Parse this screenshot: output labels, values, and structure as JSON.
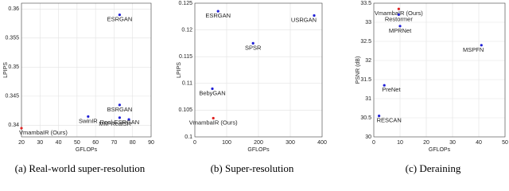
{
  "chart_data": [
    {
      "type": "scatter",
      "caption": "(a) Real-world super-resolution",
      "x_label": "GFLOPs",
      "y_label": "LPIPS",
      "x": [
        73,
        73,
        56,
        78,
        73,
        20
      ],
      "values": [
        0.359,
        0.3435,
        0.3415,
        0.341,
        0.3413,
        0.3395
      ],
      "point_labels": [
        "ESRGAN",
        "BSRGAN",
        "SwinIR",
        "MM-RealSR",
        "Real-ESRGAN",
        "VmambaIR (Ours)"
      ],
      "colors": [
        "#1f1fd6",
        "#1f1fd6",
        "#1f1fd6",
        "#1f1fd6",
        "#1f1fd6",
        "#e02020"
      ],
      "xlim": [
        20,
        90
      ],
      "xticks": [
        20,
        30,
        40,
        50,
        60,
        70,
        80,
        90
      ],
      "ylim": [
        0.338,
        0.361
      ],
      "yticks": [
        0.34,
        0.345,
        0.35,
        0.355,
        0.36
      ],
      "grid": true
    },
    {
      "type": "scatter",
      "caption": "(b) Super-resolution",
      "x_label": "GFLOPs",
      "y_label": "LPIPS",
      "x": [
        73,
        375,
        183,
        55,
        58
      ],
      "values": [
        0.1235,
        0.1227,
        0.1175,
        0.109,
        0.1035
      ],
      "point_labels": [
        "ESRGAN",
        "USRGAN",
        "SPSR",
        "BebyGAN",
        "VmambaIR (Ours)"
      ],
      "colors": [
        "#1f1fd6",
        "#1f1fd6",
        "#1f1fd6",
        "#1f1fd6",
        "#e02020"
      ],
      "xlim": [
        0,
        400
      ],
      "xticks": [
        0,
        100,
        200,
        300,
        400
      ],
      "ylim": [
        0.1,
        0.125
      ],
      "yticks": [
        0.1,
        0.105,
        0.11,
        0.115,
        0.12,
        0.125
      ],
      "grid": true
    },
    {
      "type": "scatter",
      "caption": "(c) Deraining",
      "x_label": "GFLOPs",
      "y_label": "PSNR (dB)",
      "x": [
        9.5,
        9.5,
        10,
        41,
        4,
        2
      ],
      "values": [
        33.35,
        33.2,
        32.9,
        32.4,
        31.35,
        30.55
      ],
      "point_labels": [
        "VmambaIR (Ours)",
        "Restormer",
        "MPRNet",
        "MSPFN",
        "PreNet",
        "RESCAN"
      ],
      "colors": [
        "#e02020",
        "#1f1fd6",
        "#1f1fd6",
        "#1f1fd6",
        "#1f1fd6",
        "#1f1fd6"
      ],
      "xlim": [
        0,
        50
      ],
      "xticks": [
        0,
        10,
        20,
        30,
        40,
        50
      ],
      "ylim": [
        30,
        33.5
      ],
      "yticks": [
        30,
        30.5,
        31,
        31.5,
        32,
        32.5,
        33,
        33.5
      ],
      "grid": true
    }
  ]
}
